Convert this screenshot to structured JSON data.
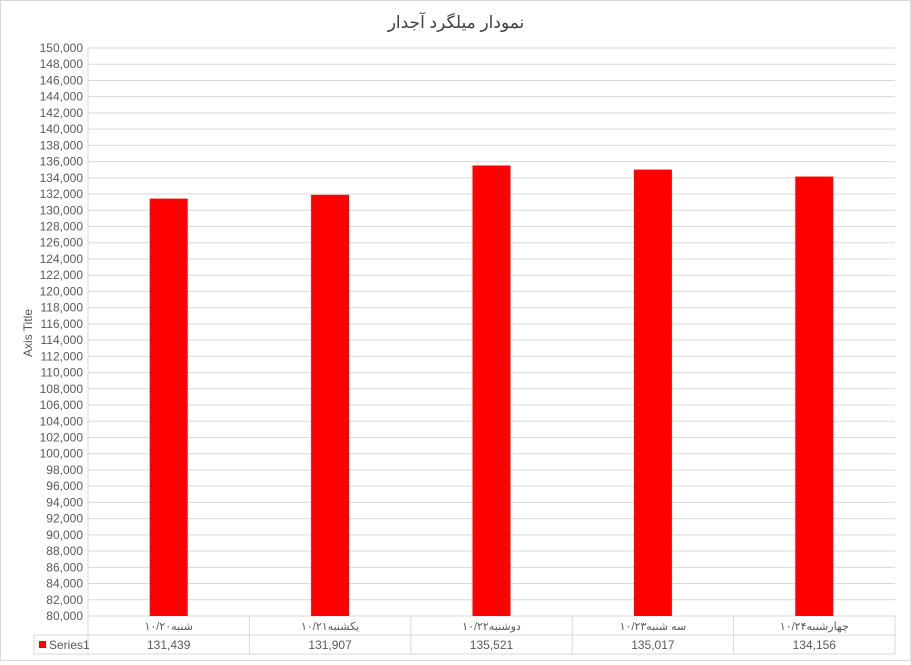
{
  "chart_data": {
    "type": "bar",
    "title": "نمودار میلگرد آجدار",
    "ylabel": "Axis Title",
    "xlabel": "",
    "categories": [
      "شنبه۱۰/۲۰",
      "یکشنبه۱۰/۲۱",
      "دوشنبه۱۰/۲۲",
      "سه شنبه۱۰/۲۳",
      "چهارشنبه۱۰/۲۴"
    ],
    "series": [
      {
        "name": "Series1",
        "values": [
          131439,
          131907,
          135521,
          135017,
          134156
        ],
        "color": "#ff0000"
      }
    ],
    "value_labels": [
      "131,439",
      "131,907",
      "135,521",
      "135,017",
      "134,156"
    ],
    "ylim": [
      80000,
      150000
    ],
    "ytick_step": 2000,
    "grid": true,
    "legend": "data-table",
    "colors": {
      "grid": "#d9d9d9",
      "text": "#595959",
      "title": "#404040"
    }
  }
}
